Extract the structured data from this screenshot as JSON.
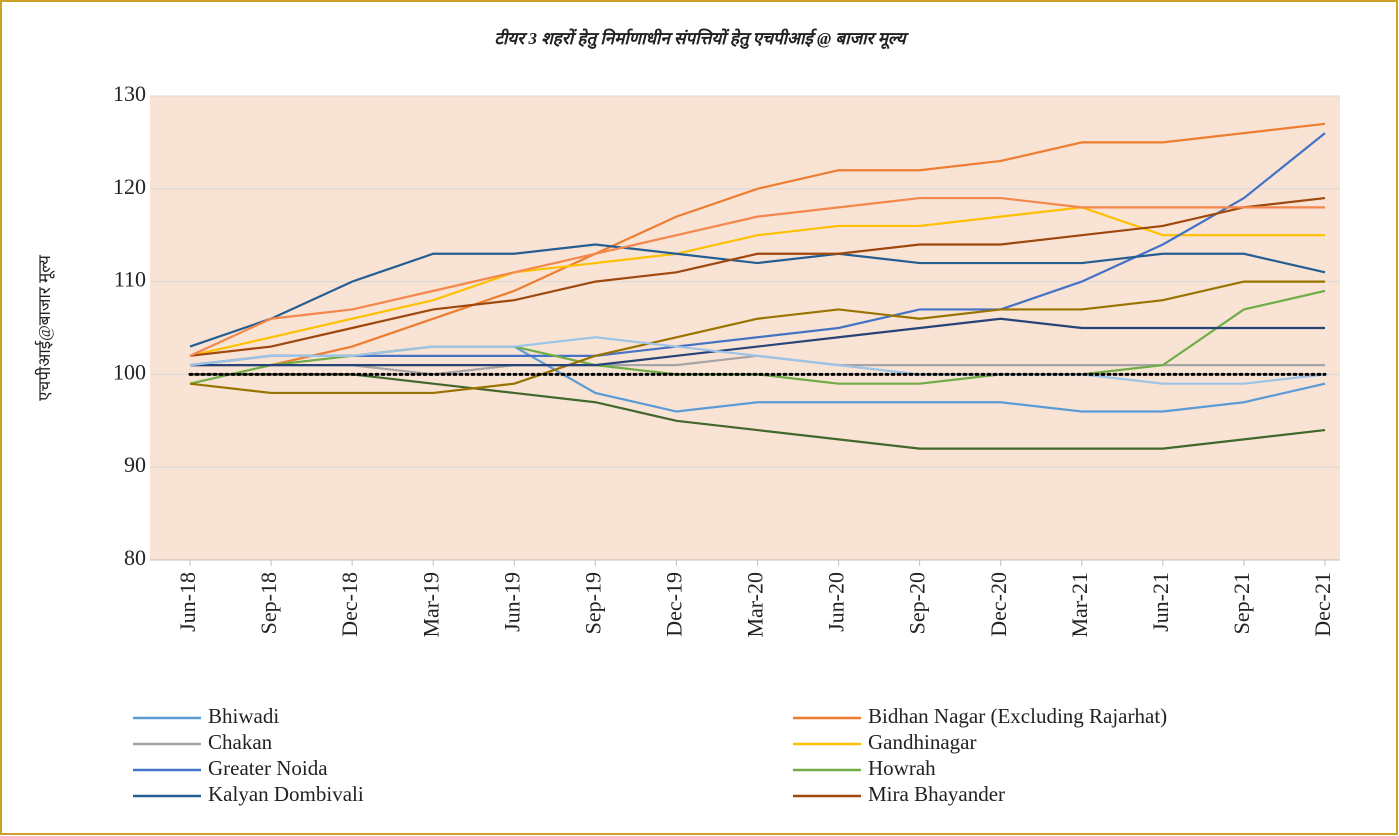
{
  "chart_data": {
    "type": "line",
    "title": "टीयर 3 शहरों हेतु निर्माणाधीन संपत्तियों हेतु एचपीआई @ बाजार मूल्य",
    "y_label": "एचपीआई@बाजार मूल्य",
    "categories": [
      "Jun-18",
      "Sep-18",
      "Dec-18",
      "Mar-19",
      "Jun-19",
      "Sep-19",
      "Dec-19",
      "Mar-20",
      "Jun-20",
      "Sep-20",
      "Dec-20",
      "Mar-21",
      "Jun-21",
      "Sep-21",
      "Dec-21"
    ],
    "ylim": [
      80,
      130
    ],
    "yticks": [
      80,
      90,
      100,
      110,
      120,
      130
    ],
    "grid": true,
    "series": [
      {
        "name": "Bhiwadi",
        "color": "#5b9bd5",
        "values": [
          101,
          102,
          102,
          103,
          103,
          98,
          96,
          97,
          97,
          97,
          97,
          96,
          96,
          97,
          99
        ]
      },
      {
        "name": "Bidhan Nagar (Excluding Rajarhat)",
        "color": "#ed7d31",
        "values": [
          101,
          101,
          103,
          106,
          109,
          113,
          117,
          120,
          122,
          122,
          123,
          125,
          125,
          126,
          127
        ]
      },
      {
        "name": "Chakan",
        "color": "#a5a5a5",
        "values": [
          101,
          101,
          101,
          100,
          101,
          101,
          101,
          102,
          101,
          101,
          101,
          101,
          101,
          101,
          101
        ]
      },
      {
        "name": "Gandhinagar",
        "color": "#ffc000",
        "values": [
          102,
          104,
          106,
          108,
          111,
          112,
          113,
          115,
          116,
          116,
          117,
          118,
          115,
          115,
          115
        ]
      },
      {
        "name": "Greater Noida",
        "color": "#4472c4",
        "values": [
          101,
          102,
          102,
          102,
          102,
          102,
          103,
          104,
          105,
          107,
          107,
          110,
          114,
          119,
          126
        ]
      },
      {
        "name": "Howrah",
        "color": "#70ad47",
        "values": [
          99,
          101,
          102,
          103,
          103,
          101,
          100,
          100,
          99,
          99,
          100,
          100,
          101,
          107,
          109
        ]
      },
      {
        "name": "Kalyan Dombivali",
        "color": "#255e91",
        "values": [
          103,
          106,
          110,
          113,
          113,
          114,
          113,
          112,
          113,
          112,
          112,
          112,
          113,
          113,
          111
        ]
      },
      {
        "name": "Mira Bhayander",
        "color": "#9e480e",
        "values": [
          102,
          103,
          105,
          107,
          108,
          110,
          111,
          113,
          113,
          114,
          114,
          115,
          116,
          118,
          119
        ]
      },
      {
        "color": "#f4874b",
        "values": [
          102,
          106,
          107,
          109,
          111,
          113,
          115,
          117,
          118,
          119,
          119,
          118,
          118,
          118,
          118
        ]
      },
      {
        "color": "#43682b",
        "values": [
          100,
          100,
          100,
          99,
          98,
          97,
          95,
          94,
          93,
          92,
          92,
          92,
          92,
          93,
          94
        ]
      },
      {
        "color": "#997300",
        "values": [
          99,
          98,
          98,
          98,
          99,
          102,
          104,
          106,
          107,
          106,
          107,
          107,
          108,
          110,
          110
        ]
      },
      {
        "color": "#264478",
        "values": [
          101,
          101,
          101,
          101,
          101,
          101,
          102,
          103,
          104,
          105,
          106,
          105,
          105,
          105,
          105
        ]
      },
      {
        "color": "#9dc3e6",
        "values": [
          101,
          102,
          102,
          103,
          103,
          104,
          103,
          102,
          101,
          100,
          100,
          100,
          99,
          99,
          100
        ]
      },
      {
        "color": "#000000",
        "dash": "dotted",
        "values": [
          100,
          100,
          100,
          100,
          100,
          100,
          100,
          100,
          100,
          100,
          100,
          100,
          100,
          100,
          100
        ]
      }
    ]
  }
}
